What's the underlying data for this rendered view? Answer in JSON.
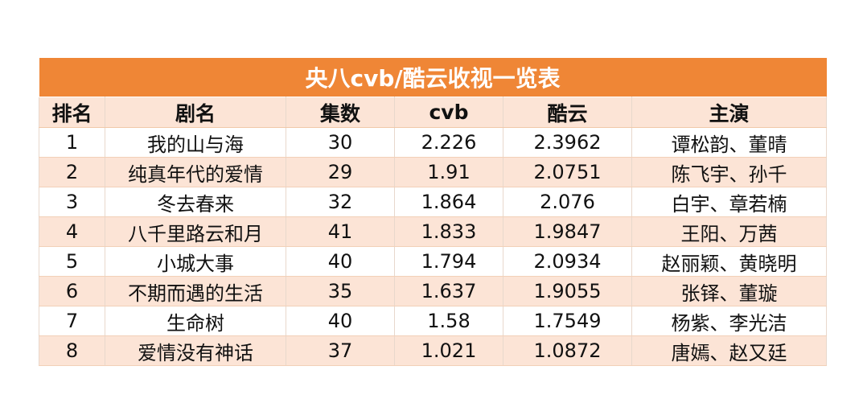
{
  "table": {
    "title": "央八cvb/酷云收视一览表",
    "header": [
      "排名",
      "剧名",
      "集数",
      "cvb",
      "酷云",
      "主演"
    ],
    "rows": [
      [
        "1",
        "我的山与海",
        "30",
        "2.226",
        "2.3962",
        "谭松韵、董晴"
      ],
      [
        "2",
        "纯真年代的爱情",
        "29",
        "1.91",
        "2.0751",
        "陈飞宇、孙千"
      ],
      [
        "3",
        "冬去春来",
        "32",
        "1.864",
        "2.076",
        "白宇、章若楠"
      ],
      [
        "4",
        "八千里路云和月",
        "41",
        "1.833",
        "1.9847",
        "王阳、万茜"
      ],
      [
        "5",
        "小城大事",
        "40",
        "1.794",
        "2.0934",
        "赵丽颖、黄晓明"
      ],
      [
        "6",
        "不期而遇的生活",
        "35",
        "1.637",
        "1.9055",
        "张铎、董璇"
      ],
      [
        "7",
        "生命树",
        "40",
        "1.58",
        "1.7549",
        "杨紫、李光洁"
      ],
      [
        "8",
        "爱情没有神话",
        "37",
        "1.021",
        "1.0872",
        "唐嫣、赵又廷"
      ]
    ]
  }
}
